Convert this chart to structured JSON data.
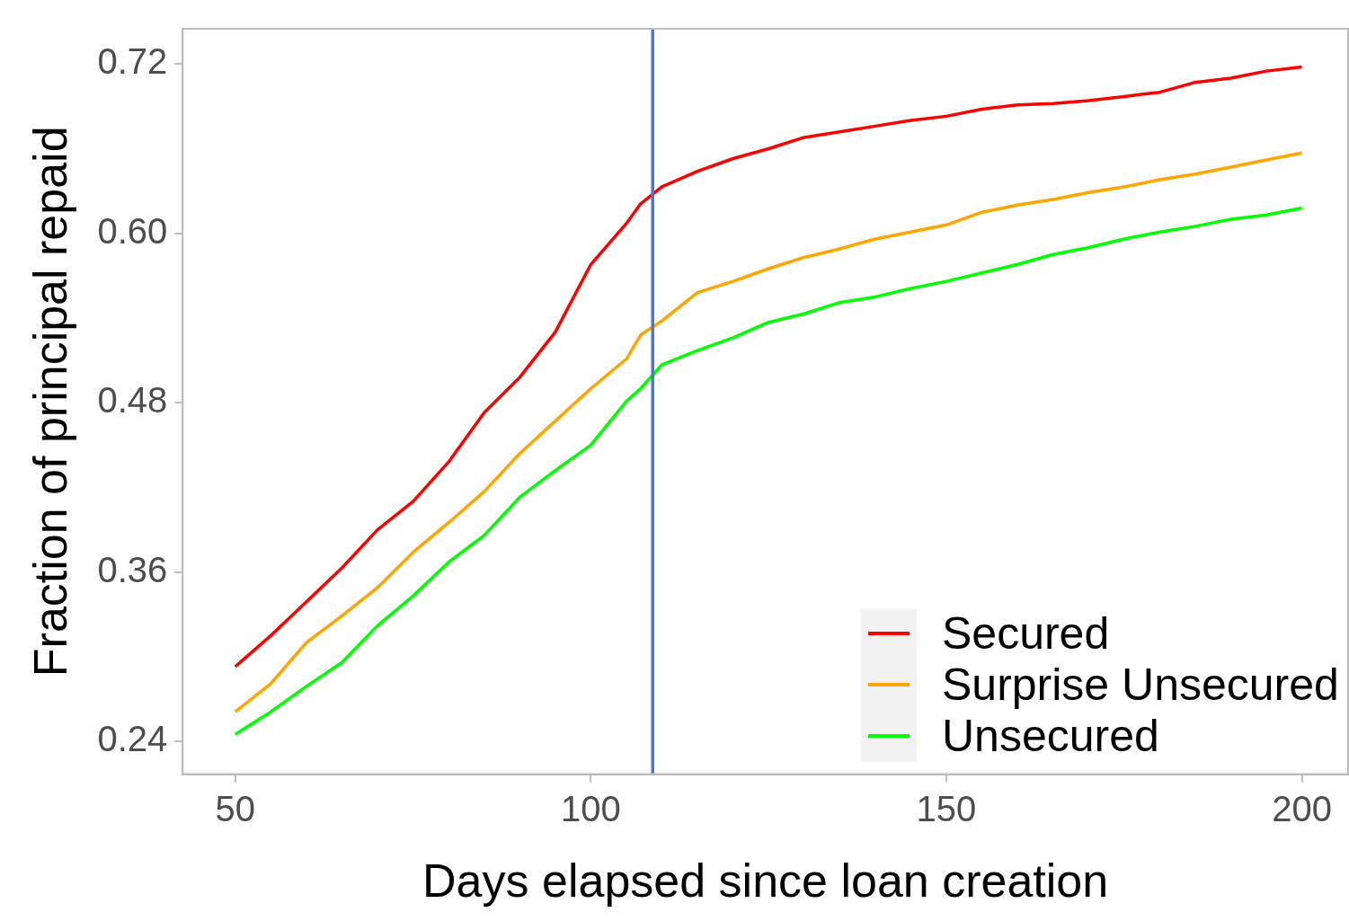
{
  "chart_data": {
    "type": "line",
    "xlabel": "Days elapsed since loan creation",
    "ylabel": "Fraction of principal repaid",
    "x": [
      50,
      55,
      60,
      65,
      70,
      75,
      80,
      85,
      90,
      95,
      100,
      105,
      107,
      110,
      115,
      120,
      125,
      130,
      135,
      140,
      145,
      150,
      155,
      160,
      165,
      170,
      175,
      180,
      185,
      190,
      195,
      200
    ],
    "series": [
      {
        "name": "Secured",
        "color": "#ff0000",
        "values": [
          0.293,
          0.315,
          0.339,
          0.363,
          0.39,
          0.41,
          0.438,
          0.473,
          0.498,
          0.53,
          0.578,
          0.607,
          0.621,
          0.633,
          0.644,
          0.653,
          0.66,
          0.668,
          0.672,
          0.676,
          0.68,
          0.683,
          0.688,
          0.691,
          0.692,
          0.694,
          0.697,
          0.7,
          0.707,
          0.71,
          0.715,
          0.718
        ]
      },
      {
        "name": "Surprise Unsecured",
        "color": "#ffa500",
        "values": [
          0.261,
          0.281,
          0.31,
          0.329,
          0.349,
          0.374,
          0.395,
          0.417,
          0.444,
          0.467,
          0.49,
          0.511,
          0.528,
          0.538,
          0.558,
          0.566,
          0.575,
          0.583,
          0.589,
          0.596,
          0.601,
          0.606,
          0.615,
          0.62,
          0.624,
          0.629,
          0.633,
          0.638,
          0.642,
          0.647,
          0.652,
          0.657
        ]
      },
      {
        "name": "Unsecured",
        "color": "#00ff00",
        "values": [
          0.245,
          0.261,
          0.279,
          0.296,
          0.322,
          0.343,
          0.367,
          0.386,
          0.413,
          0.432,
          0.45,
          0.481,
          0.49,
          0.507,
          0.517,
          0.526,
          0.537,
          0.543,
          0.551,
          0.555,
          0.561,
          0.566,
          0.572,
          0.578,
          0.585,
          0.59,
          0.596,
          0.601,
          0.605,
          0.61,
          0.613,
          0.618
        ]
      }
    ],
    "ref_lines": [
      {
        "axis": "x",
        "value": 108.7,
        "color": "#4a78d0"
      }
    ],
    "xlim": [
      42.6,
      206.5
    ],
    "xticks": [
      50,
      100,
      150,
      200
    ],
    "ylim": [
      0.2168,
      0.745
    ],
    "yticks": [
      {
        "value": 0.24,
        "label": "0.24"
      },
      {
        "value": 0.36,
        "label": "0.36"
      },
      {
        "value": 0.48,
        "label": "0.48"
      },
      {
        "value": 0.6,
        "label": "0.60"
      },
      {
        "value": 0.72,
        "label": "0.72"
      }
    ],
    "grid": false,
    "legend": "bottom right",
    "marker": "none",
    "line_style": "solid"
  }
}
